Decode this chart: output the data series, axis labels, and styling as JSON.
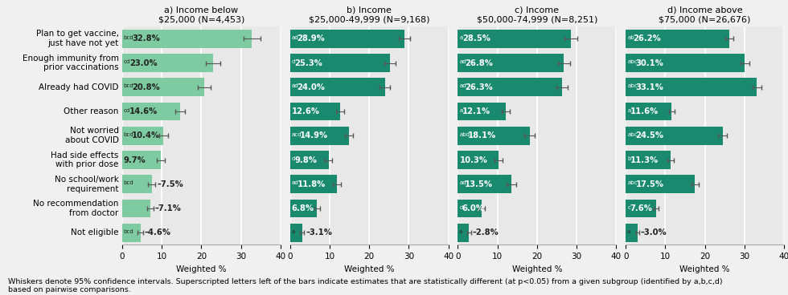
{
  "categories": [
    "Plan to get vaccine,\njust have not yet",
    "Enough immunity from\nprior vaccinations",
    "Already had COVID",
    "Other reason",
    "Not worried\nabout COVID",
    "Had side effects\nwith prior dose",
    "No school/work\nrequirement",
    "No recommendation\nfrom doctor",
    "Not eligible"
  ],
  "panels": [
    {
      "title": "a) Income below\n$25,000 (N=4,453)",
      "color": "#7ecba1",
      "text_color_inside": "#222222",
      "values": [
        32.8,
        23.0,
        20.8,
        14.6,
        10.4,
        9.7,
        7.5,
        7.1,
        4.6
      ],
      "errors": [
        2.2,
        1.9,
        1.6,
        1.2,
        1.1,
        1.0,
        0.9,
        0.8,
        0.7
      ],
      "superscripts": [
        "bcd",
        "cd",
        "bcd",
        "cd",
        "bcd",
        "",
        "bcd",
        "",
        "bcd"
      ],
      "outside_threshold": 8.0
    },
    {
      "title": "b) Income\n$25,000-49,999 (N=9,168)",
      "color": "#1a8a6e",
      "text_color_inside": "#ffffff",
      "values": [
        28.9,
        25.3,
        24.0,
        12.6,
        14.9,
        9.8,
        11.8,
        6.8,
        3.1
      ],
      "errors": [
        1.5,
        1.4,
        1.3,
        1.0,
        1.1,
        0.9,
        1.0,
        0.7,
        0.5
      ],
      "superscripts": [
        "ad",
        "d",
        "ad",
        "",
        "acd",
        "d",
        "ad",
        "",
        "a"
      ],
      "outside_threshold": 5.0
    },
    {
      "title": "c) Income\n$50,000-74,999 (N=8,251)",
      "color": "#1a8a6e",
      "text_color_inside": "#ffffff",
      "values": [
        28.5,
        26.8,
        26.3,
        12.1,
        18.1,
        10.3,
        13.5,
        6.0,
        2.8
      ],
      "errors": [
        1.6,
        1.5,
        1.5,
        1.1,
        1.3,
        1.0,
        1.2,
        0.8,
        0.5
      ],
      "superscripts": [
        "a",
        "ad",
        "ad",
        "a",
        "abd",
        "",
        "ad",
        "d",
        "a"
      ],
      "outside_threshold": 5.0
    },
    {
      "title": "d) Income above\n$75,000 (N=26,676)",
      "color": "#1a8a6e",
      "text_color_inside": "#ffffff",
      "values": [
        26.2,
        30.1,
        33.1,
        11.6,
        24.5,
        11.3,
        17.5,
        7.6,
        3.0
      ],
      "errors": [
        1.0,
        1.1,
        1.1,
        0.7,
        1.1,
        0.8,
        0.9,
        0.6,
        0.4
      ],
      "superscripts": [
        "ab",
        "abc",
        "abc",
        "a",
        "abc",
        "b",
        "abc",
        "c",
        "a"
      ],
      "outside_threshold": 5.0
    }
  ],
  "xlabel": "Weighted %",
  "xlim": [
    0,
    40
  ],
  "xticks": [
    0,
    10,
    20,
    30,
    40
  ],
  "footnote": "Whiskers denote 95% confidence intervals. Superscripted letters left of the bars indicate estimates that are statistically different (at p<0.05) from a given subgroup (identified by a,b,c,d)\nbased on pairwise comparisons.",
  "bg_color": "#f0f0f0",
  "plot_bg": "#e8e8e8",
  "grid_color": "#ffffff",
  "title_fontsize": 8.0,
  "label_fontsize": 7.5,
  "bar_fontsize": 7.2,
  "sup_fontsize": 5.0,
  "footnote_fontsize": 6.8
}
